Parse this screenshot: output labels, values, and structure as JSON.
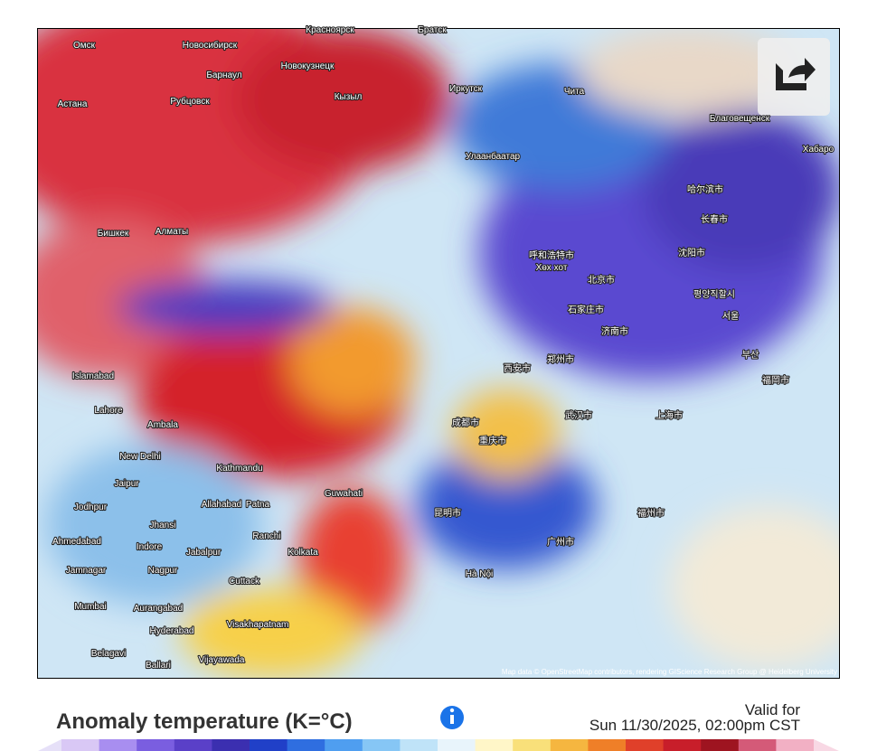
{
  "map": {
    "labels": [
      "Омск",
      "Новосибирск",
      "Красноярск",
      "Братск",
      "Барнаул",
      "Новокузнецк",
      "Астана",
      "Рубцовск",
      "Кызыл",
      "Иркутск",
      "Чита",
      "Благовещенск",
      "Хабаро",
      "Улаанбаатар",
      "Бишкек",
      "Алматы",
      "哈尔滨市",
      "长春市",
      "呼和浩特市",
      "Хөх хот",
      "沈阳市",
      "北京市",
      "평양직할시",
      "石家庄市",
      "서울",
      "济南市",
      "郑州市",
      "西安市",
      "부산",
      "福岡市",
      "上海市",
      "武汉市",
      "重庆市",
      "成都市",
      "Islamabad",
      "Lahore",
      "Ambala",
      "New Delhi",
      "Kathmandu",
      "Jaipur",
      "Guwahati",
      "Jodhpur",
      "Allahabad",
      "Patna",
      "Jhansi",
      "Ranchi",
      "Ahmedabad",
      "Indore",
      "Jabalpur",
      "Kolkata",
      "昆明市",
      "广州市",
      "福州市",
      "Jamnagar",
      "Nagpur",
      "Cuttack",
      "Hà Nội",
      "Mumbai",
      "Aurangabad",
      "Hyderabad",
      "Visakhapatnam",
      "Belagavi",
      "Vijayawada",
      "Ballari"
    ],
    "attribution": "Map data © OpenStreetMap contributors, rendering GIScience Research Group @ Heidelberg University"
  },
  "footer": {
    "title": "Anomaly temperature (K=°C)",
    "valid_for": "Valid for",
    "date": "Sun 11/30/2025, 02:00pm CST"
  }
}
